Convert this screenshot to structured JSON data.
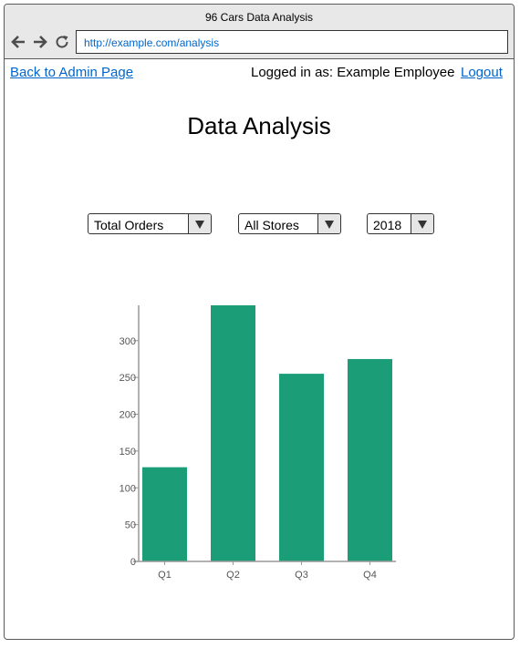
{
  "window": {
    "title": "96 Cars Data Analysis",
    "url": "http://example.com/analysis"
  },
  "header": {
    "back_link": "Back to Admin Page",
    "logged_in": "Logged in as: Example Employee",
    "logout": "Logout"
  },
  "page": {
    "title": "Data Analysis"
  },
  "filters": {
    "metric": "Total Orders",
    "store": "All Stores",
    "year": "2018"
  },
  "icons": {
    "back": "arrow-left-icon",
    "forward": "arrow-right-icon",
    "reload": "reload-icon",
    "dropdown": "chevron-down-icon"
  },
  "colors": {
    "bar": "#1b9e77",
    "link": "#0066cc"
  },
  "chart_data": {
    "type": "bar",
    "title": "",
    "xlabel": "",
    "ylabel": "",
    "categories": [
      "Q1",
      "Q2",
      "Q3",
      "Q4"
    ],
    "values": [
      128,
      348,
      255,
      275
    ],
    "yticks": [
      0,
      50,
      100,
      150,
      200,
      250,
      300
    ],
    "ylim": [
      0,
      348
    ],
    "grid": false,
    "legend": "none"
  }
}
